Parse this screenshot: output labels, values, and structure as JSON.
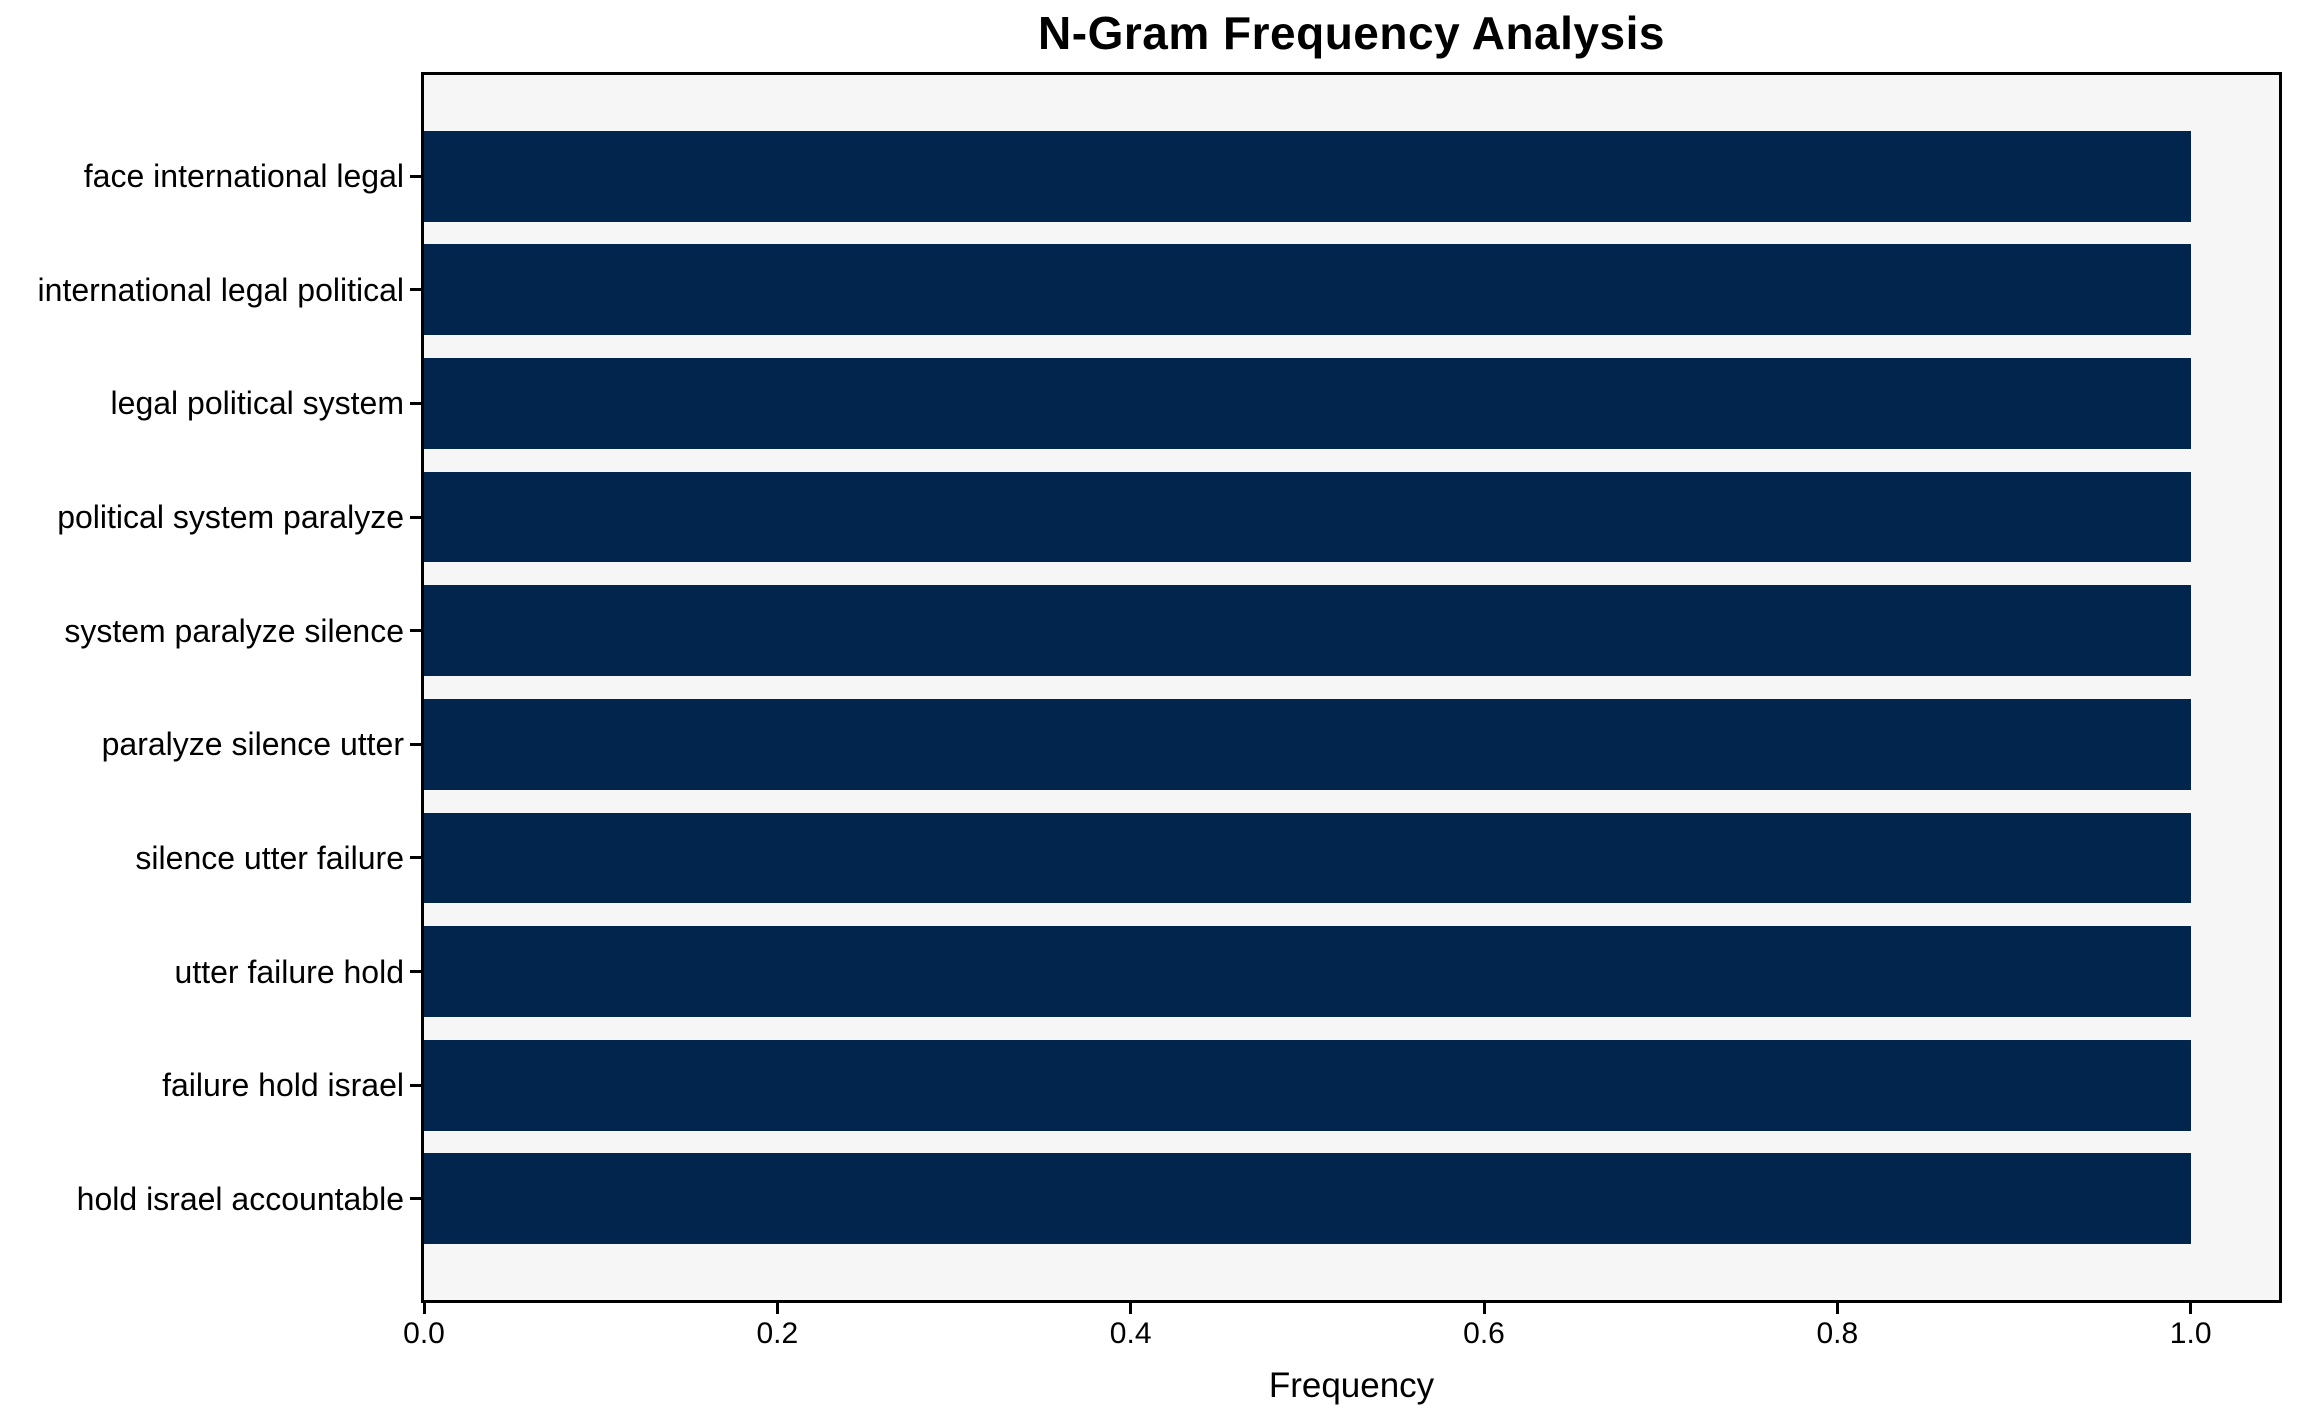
{
  "chart_data": {
    "type": "bar",
    "orientation": "horizontal",
    "title": "N-Gram Frequency Analysis",
    "categories": [
      "face international legal",
      "international legal political",
      "legal political system",
      "political system paralyze",
      "system paralyze silence",
      "paralyze silence utter",
      "silence utter failure",
      "utter failure hold",
      "failure hold israel",
      "hold israel accountable"
    ],
    "values": [
      1.0,
      1.0,
      1.0,
      1.0,
      1.0,
      1.0,
      1.0,
      1.0,
      1.0,
      1.0
    ],
    "xlabel": "Frequency",
    "ylabel": "",
    "xlim": [
      0,
      1.05
    ],
    "xticks": [
      0.0,
      0.2,
      0.4,
      0.6,
      0.8,
      1.0
    ],
    "xtick_labels": [
      "0.0",
      "0.2",
      "0.4",
      "0.6",
      "0.8",
      "1.0"
    ],
    "grid": false,
    "legend": "none",
    "bar_color": "#02254e",
    "plot_bg": "#f6f6f7",
    "figure_bg": "#ffffff",
    "bar_height_fraction": 0.8
  }
}
